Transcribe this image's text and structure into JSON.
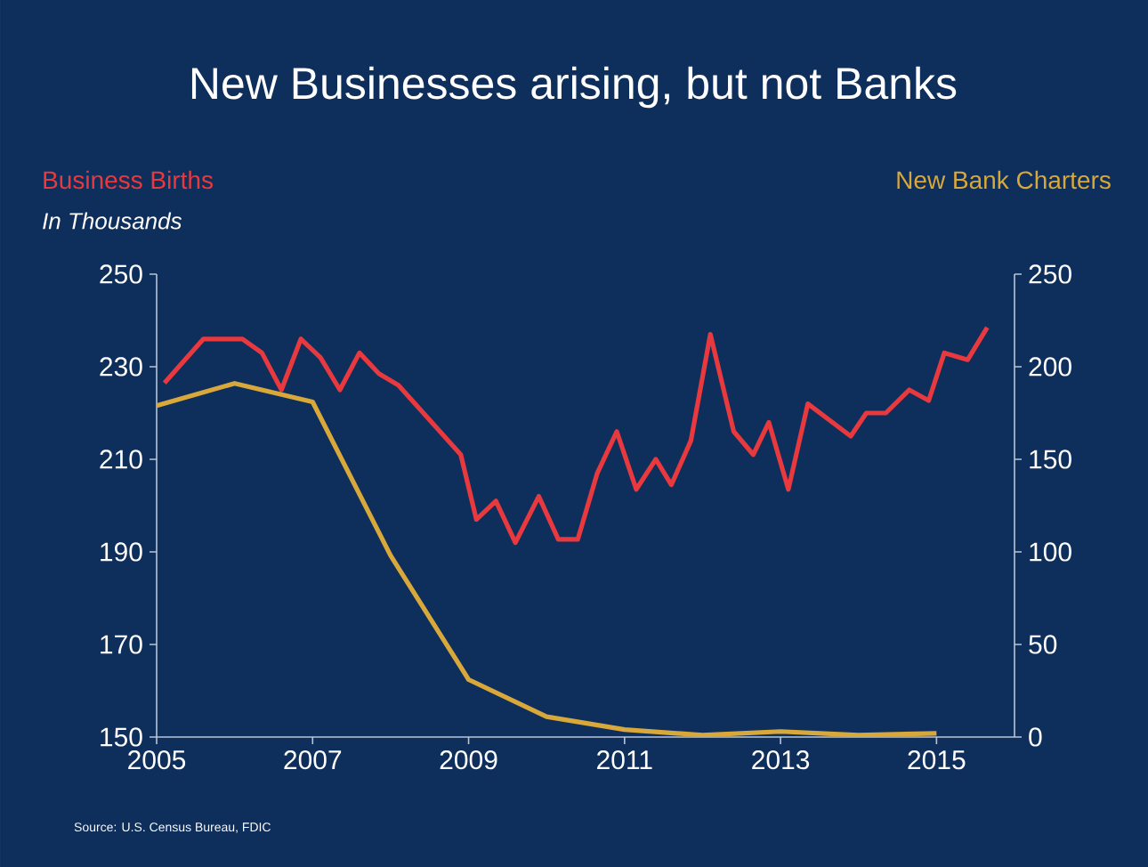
{
  "chart_data": {
    "type": "line",
    "title": "New Businesses arising, but not Banks",
    "subtitle": "In Thousands",
    "ylabel": "Business Births",
    "y2label": "New Bank Charters",
    "annotations": [
      "Source: U.S. Census Bureau, FDIC"
    ],
    "xlim": [
      2005,
      2016
    ],
    "xticks": [
      2005,
      2007,
      2009,
      2011,
      2013,
      2015
    ],
    "ylim": [
      150,
      250
    ],
    "yticks": [
      150,
      170,
      190,
      210,
      230,
      250
    ],
    "y2lim": [
      0,
      250
    ],
    "y2ticks": [
      0,
      50,
      100,
      150,
      200,
      250
    ],
    "grid": false,
    "marker": "none",
    "line_style": "solid",
    "series": [
      {
        "color": "#e8393f",
        "axis": "y",
        "x": [
          2005.1,
          2005.6,
          2006.1,
          2006.35,
          2006.6,
          2006.85,
          2007.1,
          2007.35,
          2007.6,
          2007.85,
          2008.1,
          2008.9,
          2009.1,
          2009.35,
          2009.6,
          2009.9,
          2010.15,
          2010.4,
          2010.65,
          2010.9,
          2011.15,
          2011.4,
          2011.6,
          2011.85,
          2012.1,
          2012.4,
          2012.65,
          2012.85,
          2013.1,
          2013.35,
          2013.9,
          2014.1,
          2014.35,
          2014.65,
          2014.9,
          2015.1,
          2015.4,
          2015.65
        ],
        "values": [
          226.5,
          236,
          236,
          233,
          225,
          236,
          232,
          225,
          233,
          228.5,
          226,
          211,
          197,
          201,
          192,
          202,
          192.7,
          192.7,
          207,
          216,
          203.5,
          210,
          204.5,
          214,
          237,
          216,
          211,
          218,
          203.5,
          222,
          215,
          220,
          220,
          225,
          222.7,
          233,
          231.5,
          238.5
        ]
      },
      {
        "color": "#d9a83a",
        "axis": "y2",
        "x": [
          2005,
          2006,
          2007,
          2008,
          2009,
          2010,
          2011,
          2012,
          2013,
          2014,
          2015
        ],
        "values": [
          179,
          191,
          181,
          98,
          31,
          11,
          4,
          1,
          3,
          1,
          2
        ]
      }
    ]
  }
}
